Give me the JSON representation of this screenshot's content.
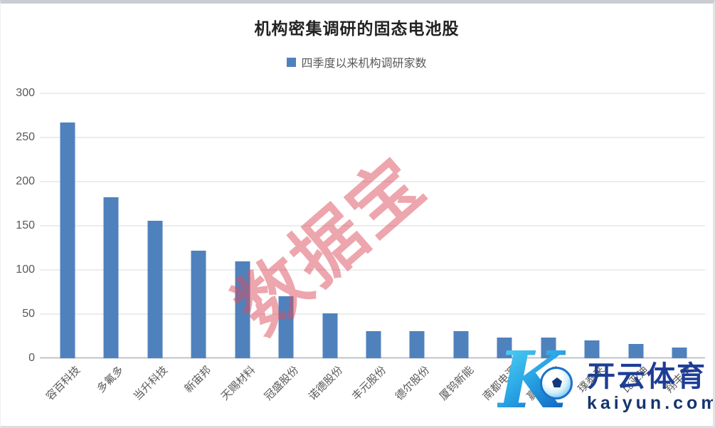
{
  "title": "机构密集调研的固态电池股",
  "legend": {
    "label": "四季度以来机构调研家数",
    "marker_color": "#4f81bd"
  },
  "chart_data": {
    "type": "bar",
    "title": "机构密集调研的固态电池股",
    "series_name": "四季度以来机构调研家数",
    "categories": [
      "容百科技",
      "多氟多",
      "当升科技",
      "新宙邦",
      "天赐材料",
      "冠盛股份",
      "诺德股份",
      "丰元股份",
      "德尔股份",
      "厦钨新能",
      "南都电源",
      "赢合科技",
      "璞泰来",
      "比亚迪",
      "翔丰华"
    ],
    "values": [
      267,
      182,
      156,
      122,
      110,
      70,
      51,
      31,
      31,
      31,
      23,
      23,
      20,
      16,
      12
    ],
    "xlabel": "",
    "ylabel": "",
    "ylim": [
      0,
      300
    ],
    "yticks": [
      0,
      50,
      100,
      150,
      200,
      250,
      300
    ],
    "grid": true,
    "legend_position": "top",
    "bar_color": "#4f81bd",
    "gridline_color": "#d9d9d9"
  },
  "watermarks": {
    "center_text": "数据宝",
    "center_color": "#db4d5c",
    "kaiyun": {
      "logo_letter": "K",
      "football_icon": "soccer-ball",
      "brand": "开云体育",
      "domain": "kaiyun.com",
      "brand_color": "#1d3d95"
    }
  }
}
